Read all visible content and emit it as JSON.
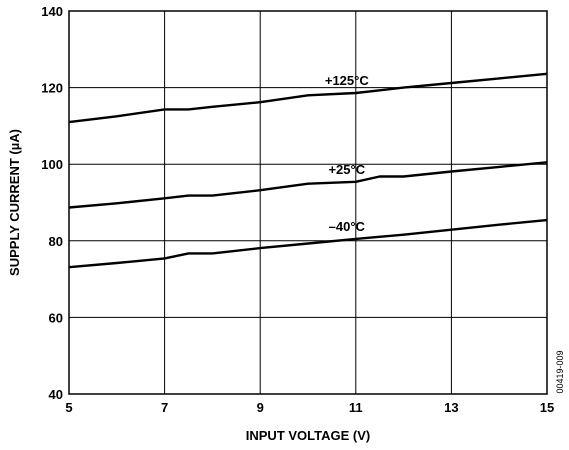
{
  "chart_data": {
    "type": "line",
    "xlabel": "INPUT VOLTAGE (V)",
    "ylabel": "SUPPLY CURRENT (µA)",
    "xlim": [
      5,
      15
    ],
    "ylim": [
      40,
      140
    ],
    "xticks": [
      5,
      7,
      9,
      11,
      13,
      15
    ],
    "yticks": [
      40,
      60,
      80,
      100,
      120,
      140
    ],
    "grid": true,
    "figure_code": "00419-009",
    "series": [
      {
        "name": "+125°C",
        "x": [
          5,
          6,
          7,
          7.5,
          8,
          9,
          10,
          11,
          12,
          13,
          14,
          15
        ],
        "y": [
          111,
          112.5,
          114.3,
          114.3,
          115,
          116.2,
          118,
          118.6,
          120,
          121.2,
          122.4,
          123.6
        ]
      },
      {
        "name": "+25°C",
        "x": [
          5,
          6,
          7,
          7.5,
          8,
          9,
          10,
          11,
          11.5,
          12,
          13,
          14,
          15
        ],
        "y": [
          88.7,
          89.8,
          91.1,
          91.8,
          91.8,
          93.2,
          94.9,
          95.4,
          96.8,
          96.8,
          98.1,
          99.3,
          100.5
        ]
      },
      {
        "name": "–40°C",
        "x": [
          5,
          6,
          7,
          7.5,
          8,
          9,
          10,
          11,
          12,
          13,
          14,
          15
        ],
        "y": [
          73.1,
          74.2,
          75.4,
          76.7,
          76.7,
          78.1,
          79.3,
          80.5,
          81.6,
          82.9,
          84.2,
          85.4
        ]
      }
    ]
  }
}
